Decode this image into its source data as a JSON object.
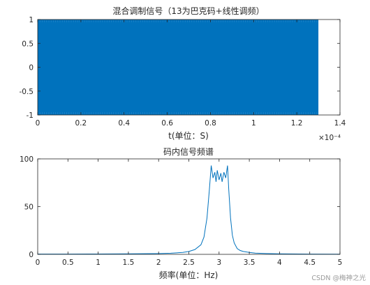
{
  "chart_data": [
    {
      "type": "line",
      "title": "混合调制信号（13为巴克码+线性调频）",
      "xlabel": "t(单位：S)",
      "x_exponent_label": "×10⁻⁴",
      "ylabel": "",
      "xlim": [
        0,
        1.4
      ],
      "ylim": [
        -1,
        1
      ],
      "xticks": [
        "0",
        "0.2",
        "0.4",
        "0.6",
        "0.8",
        "1",
        "1.2",
        "1.4"
      ],
      "yticks": [
        "1",
        "0.5",
        "0",
        "-0.5",
        "-1"
      ],
      "signal_x_range": [
        0,
        1.3
      ],
      "signal_amplitude": 1,
      "line_color": "#0072BD",
      "grid": false
    },
    {
      "type": "line",
      "title": "码内信号频谱",
      "xlabel": "频率(单位：Hz)",
      "ylabel": "",
      "xlim": [
        0,
        5
      ],
      "ylim": [
        0,
        100
      ],
      "xticks": [
        "0",
        "0.5",
        "1",
        "1.5",
        "2",
        "2.5",
        "3",
        "3.5",
        "4",
        "4.5",
        "5"
      ],
      "yticks": [
        "100",
        "50",
        "0"
      ],
      "line_color": "#0072BD",
      "grid": false,
      "series": [
        {
          "x": [
            0,
            0.5,
            1,
            1.5,
            2,
            2.2,
            2.4,
            2.5,
            2.6,
            2.7,
            2.75,
            2.8,
            2.84,
            2.87,
            2.9,
            2.93,
            2.95,
            2.97,
            3.0,
            3.03,
            3.05,
            3.08,
            3.11,
            3.14,
            3.16,
            3.19,
            3.22,
            3.25,
            3.3,
            3.35,
            3.4,
            3.5,
            3.6,
            3.8,
            4,
            4.5,
            5
          ],
          "y": [
            0.3,
            0.3,
            0.4,
            0.5,
            0.8,
            1.2,
            2,
            3,
            5,
            10,
            18,
            38,
            68,
            93,
            80,
            86,
            76,
            88,
            78,
            85,
            76,
            86,
            80,
            93,
            68,
            38,
            20,
            12,
            6,
            4,
            3,
            2,
            1.3,
            0.8,
            0.5,
            0.3,
            0.2
          ]
        }
      ]
    }
  ],
  "watermark": "CSDN @梅神之光"
}
